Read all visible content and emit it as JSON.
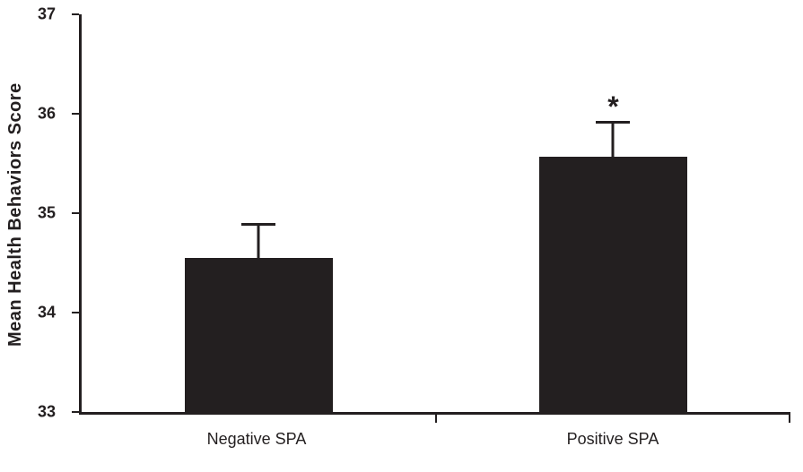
{
  "chart_data": {
    "type": "bar",
    "categories": [
      "Negative SPA",
      "Positive SPA"
    ],
    "values": [
      34.55,
      35.57
    ],
    "errors": [
      0.32,
      0.33
    ],
    "annotations": [
      "",
      "*"
    ],
    "title": "",
    "xlabel": "",
    "ylabel": "Mean Health Behaviors Score",
    "ylim": [
      33,
      37
    ],
    "yticks": [
      33,
      34,
      35,
      36,
      37
    ],
    "ytick_labels": [
      "33",
      "34",
      "35",
      "36",
      "37"
    ],
    "bar_color": "#231f20",
    "axis_color": "#231f20",
    "grid": false,
    "legend": "none",
    "error_bars": "upper whisker with cap",
    "significance_note": "asterisk above Positive SPA bar"
  }
}
